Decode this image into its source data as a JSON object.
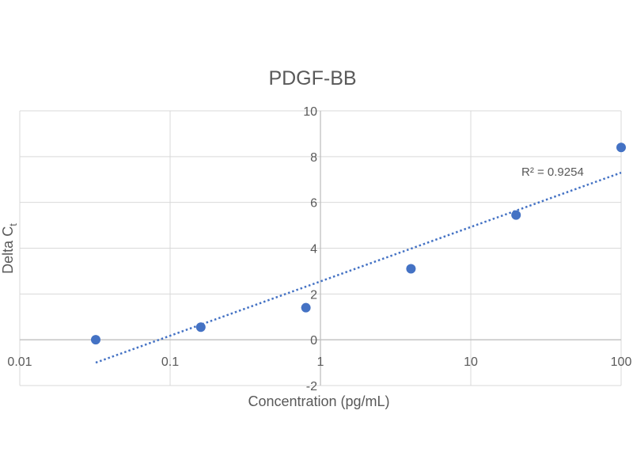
{
  "chart_data": {
    "type": "scatter",
    "title": "PDGF-BB",
    "xlabel": "Concentration (pg/mL)",
    "ylabel_main": "Delta C",
    "ylabel_sub": "t",
    "x_scale": "log",
    "xlim": [
      0.01,
      100
    ],
    "ylim": [
      -2,
      10
    ],
    "x_ticks": [
      0.01,
      0.1,
      1,
      10,
      100
    ],
    "x_tick_labels": [
      "0.01",
      "0.1",
      "1",
      "10",
      "100"
    ],
    "y_ticks": [
      -2,
      0,
      2,
      4,
      6,
      8,
      10
    ],
    "y_tick_labels": [
      "-2",
      "0",
      "2",
      "4",
      "6",
      "8",
      "10"
    ],
    "grid": true,
    "series": [
      {
        "x": [
          0.032,
          0.16,
          0.8,
          4,
          20,
          100
        ],
        "y": [
          0.0,
          0.55,
          1.4,
          3.1,
          5.45,
          8.4
        ],
        "color": "#4472C4"
      }
    ],
    "trendline": {
      "type": "logarithmic",
      "x_range": [
        0.032,
        100
      ],
      "y_range": [
        -1.0,
        7.3
      ],
      "color": "#4472C4",
      "style": "dotted",
      "r_squared_label": "R² = 0.9254"
    }
  }
}
